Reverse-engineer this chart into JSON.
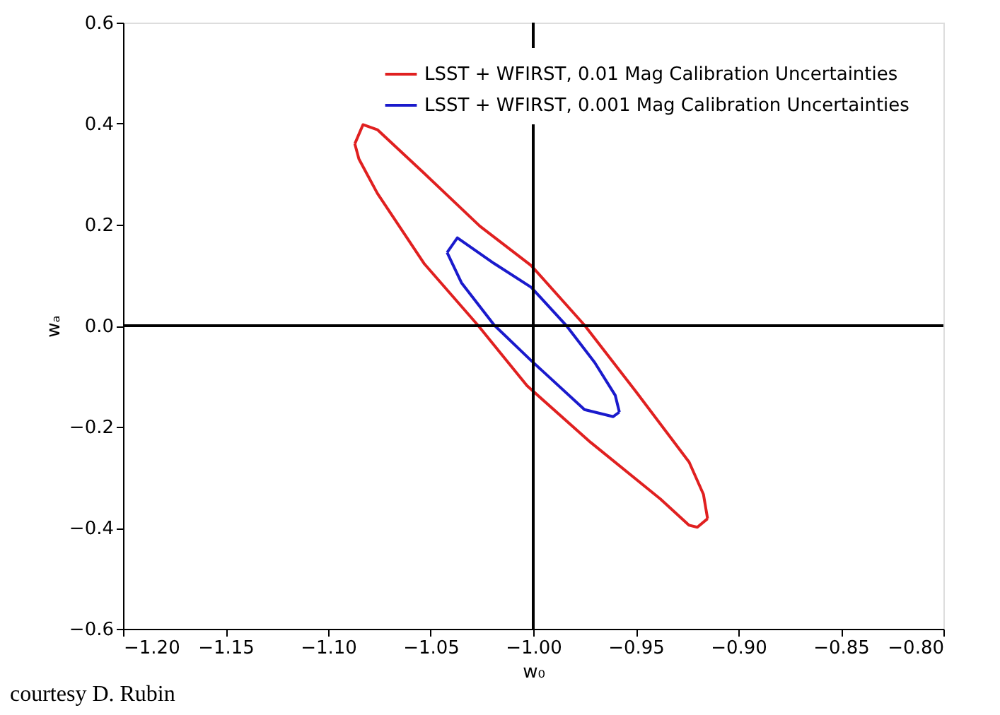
{
  "chart_data": {
    "type": "line",
    "xlabel": "w₀",
    "ylabel": "wₐ",
    "xlim": [
      -1.2,
      -0.8
    ],
    "xticks": [
      {
        "value": -1.2,
        "label": "−1.20"
      },
      {
        "value": -1.15,
        "label": "−1.15"
      },
      {
        "value": -1.1,
        "label": "−1.10"
      },
      {
        "value": -1.05,
        "label": "−1.05"
      },
      {
        "value": -1.0,
        "label": "−1.00"
      },
      {
        "value": -0.95,
        "label": "−0.95"
      },
      {
        "value": -0.9,
        "label": "−0.90"
      },
      {
        "value": -0.85,
        "label": "−0.85"
      },
      {
        "value": -0.8,
        "label": "−0.80"
      }
    ],
    "ylim": [
      -0.6,
      0.6
    ],
    "yticks": [
      {
        "value": -0.6,
        "label": "−0.6"
      },
      {
        "value": -0.4,
        "label": "−0.4"
      },
      {
        "value": -0.2,
        "label": "−0.2"
      },
      {
        "value": 0,
        "label": "0.0"
      },
      {
        "value": 0.2,
        "label": "0.2"
      },
      {
        "value": 0.4,
        "label": "0.4"
      },
      {
        "value": 0.6,
        "label": "0.6"
      }
    ],
    "series": [
      {
        "name": "LSST + WFIRST, 0.01 Mag Calibration Uncertainties",
        "color": "#e02020",
        "x": [
          -1.087,
          -1.083,
          -1.076,
          -1.053,
          -1.026,
          -1.001,
          -0.975,
          -0.95,
          -0.924,
          -0.917,
          -0.915
        ],
        "values": [
          0.36,
          0.398,
          0.388,
          0.301,
          0.197,
          0.119,
          0.001,
          -0.13,
          -0.27,
          -0.334,
          -0.382
        ]
      },
      {
        "color": "#e02020",
        "x": [
          -1.087,
          -1.085,
          -1.076,
          -1.053,
          -1.027,
          -1.003,
          -0.972,
          -0.938,
          -0.924,
          -0.92,
          -0.915
        ],
        "values": [
          0.36,
          0.33,
          0.262,
          0.122,
          0.001,
          -0.119,
          -0.231,
          -0.343,
          -0.395,
          -0.399,
          -0.382
        ]
      },
      {
        "name": "LSST + WFIRST, 0.001 Mag Calibration Uncertainties",
        "color": "#1a1acc",
        "x": [
          -1.042,
          -1.037,
          -1.019,
          -1.001,
          -0.984,
          -0.97,
          -0.96,
          -0.958
        ],
        "values": [
          0.145,
          0.174,
          0.123,
          0.076,
          0.001,
          -0.073,
          -0.138,
          -0.171
        ]
      },
      {
        "color": "#1a1acc",
        "x": [
          -1.042,
          -1.035,
          -1.019,
          -1.001,
          -0.975,
          -0.961,
          -0.958
        ],
        "values": [
          0.145,
          0.085,
          0.001,
          -0.069,
          -0.166,
          -0.18,
          -0.171
        ]
      }
    ],
    "ref_lines": [
      {
        "axis": "x",
        "value": -1.0,
        "color": "#000000"
      },
      {
        "axis": "y",
        "value": 0,
        "color": "#000000"
      }
    ],
    "annotations": [
      "courtesy D. Rubin"
    ],
    "legend": "top right",
    "grid": false,
    "marker": "none",
    "line_style": "solid"
  }
}
